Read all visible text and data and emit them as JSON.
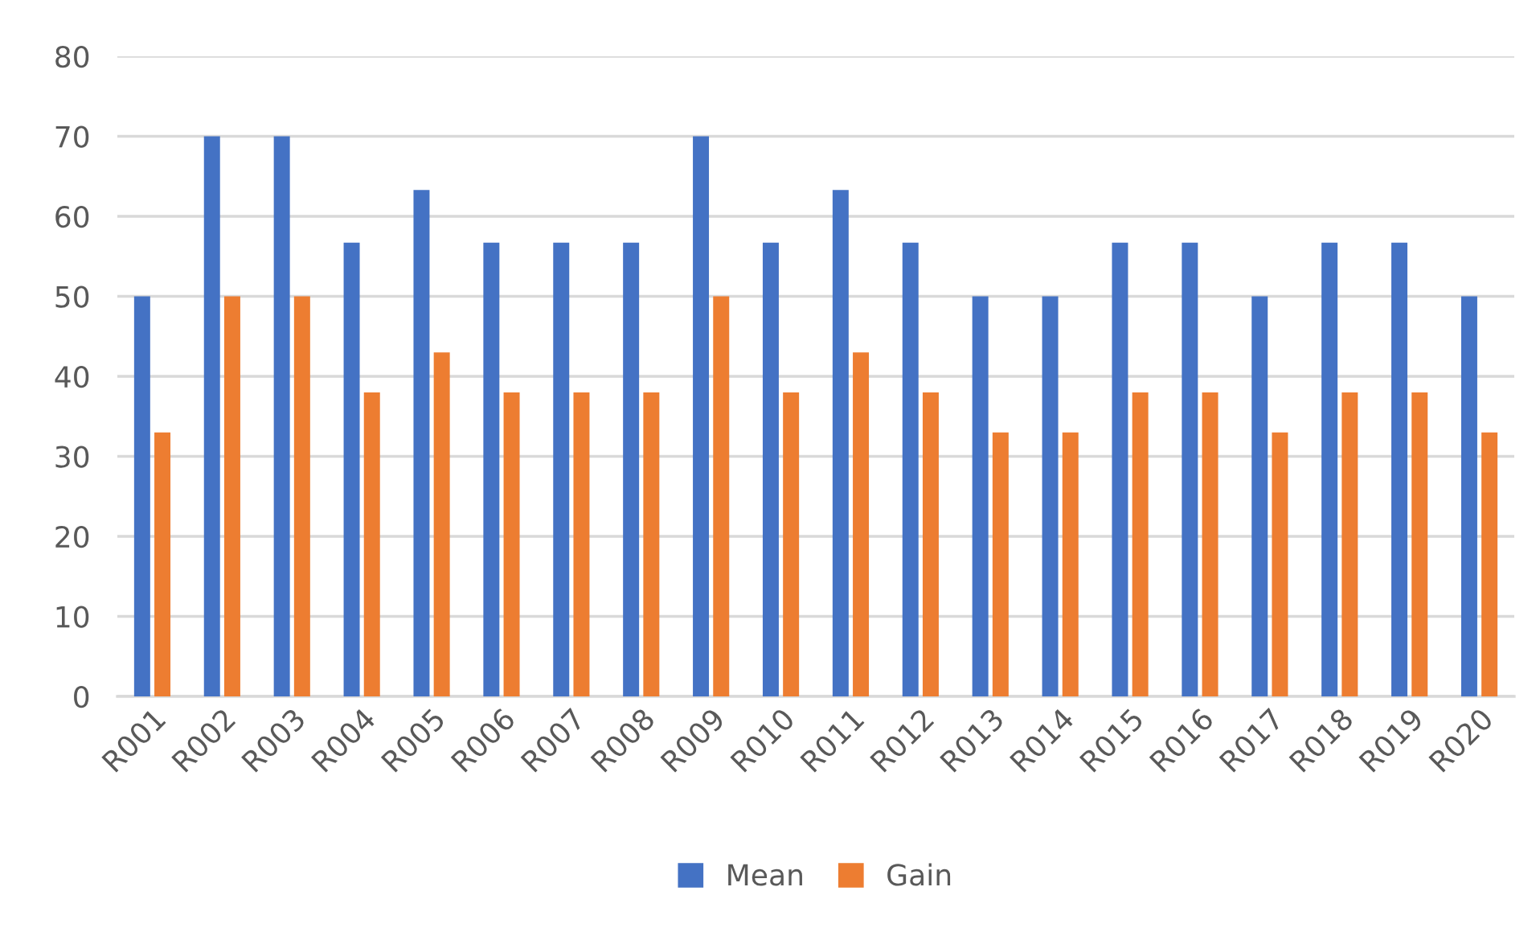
{
  "chart_data": {
    "type": "bar",
    "categories": [
      "R001",
      "R002",
      "R003",
      "R004",
      "R005",
      "R006",
      "R007",
      "R008",
      "R009",
      "R010",
      "R011",
      "R012",
      "R013",
      "R014",
      "R015",
      "R016",
      "R017",
      "R018",
      "R019",
      "R020"
    ],
    "series": [
      {
        "name": "Mean",
        "color": "#4472c4",
        "values": [
          50,
          70,
          70,
          56.7,
          63.3,
          56.7,
          56.7,
          56.7,
          70,
          56.7,
          63.3,
          56.7,
          50,
          50,
          56.7,
          56.7,
          50,
          56.7,
          56.7,
          50
        ]
      },
      {
        "name": "Gain",
        "color": "#ed7d31",
        "values": [
          33,
          50,
          50,
          38,
          43,
          38,
          38,
          38,
          50,
          38,
          43,
          38,
          33,
          33,
          38,
          38,
          33,
          38,
          38,
          33
        ]
      }
    ],
    "ylim": [
      0,
      80
    ],
    "yticks": [
      0,
      10,
      20,
      30,
      40,
      50,
      60,
      70,
      80
    ],
    "grid": "y",
    "legend": "bottom"
  }
}
